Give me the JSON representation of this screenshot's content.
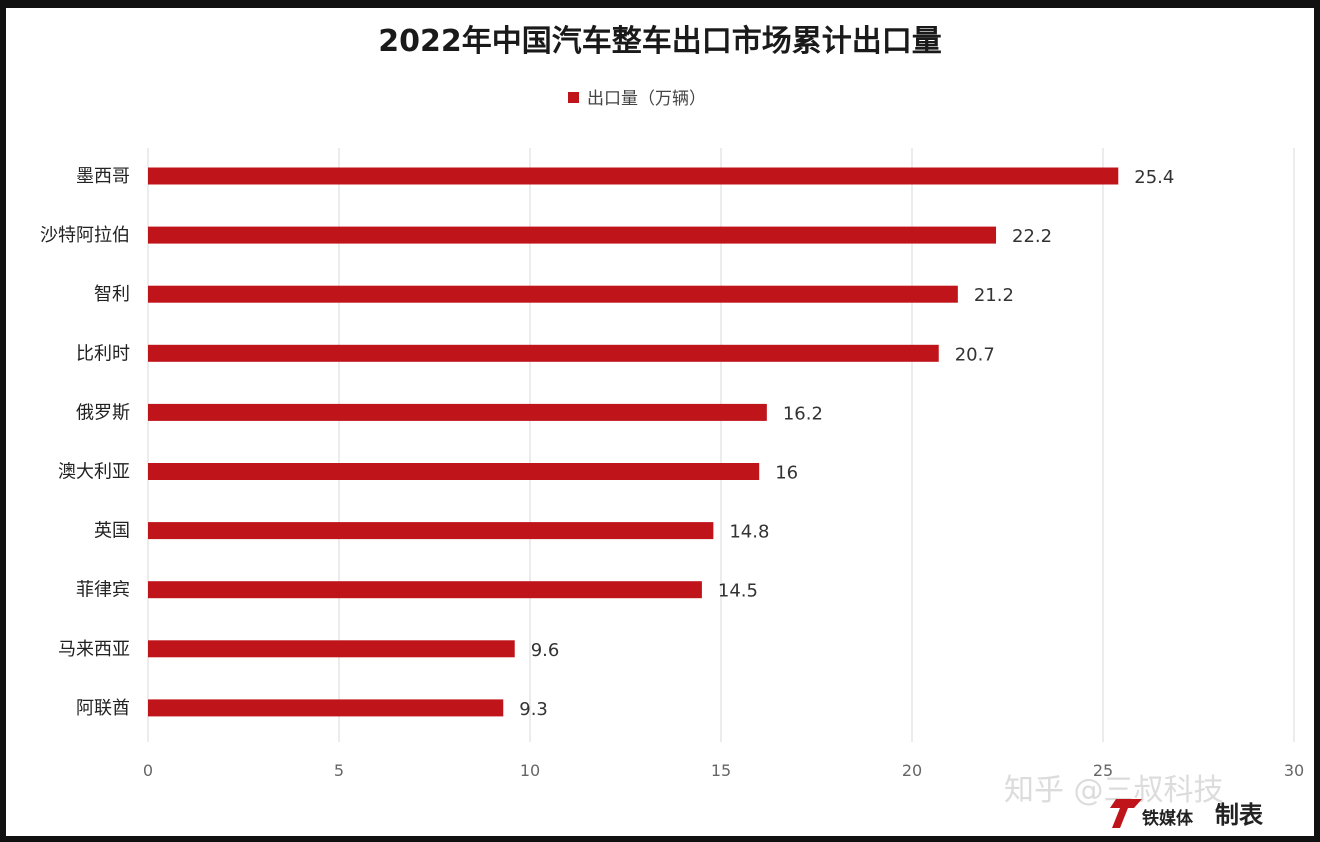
{
  "chart_data": {
    "type": "bar",
    "orientation": "horizontal",
    "title": "2022年中国汽车整车出口市场累计出口量",
    "legend": {
      "position": "top",
      "entries": [
        "出口量（万辆）"
      ]
    },
    "categories": [
      "墨西哥",
      "沙特阿拉伯",
      "智利",
      "比利时",
      "俄罗斯",
      "澳大利亚",
      "英国",
      "菲律宾",
      "马来西亚",
      "阿联酋"
    ],
    "series": [
      {
        "name": "出口量（万辆）",
        "values": [
          25.4,
          22.2,
          21.2,
          20.7,
          16.2,
          16,
          14.8,
          14.5,
          9.6,
          9.3
        ]
      }
    ],
    "value_labels": [
      "25.4",
      "22.2",
      "21.2",
      "20.7",
      "16.2",
      "16",
      "14.8",
      "14.5",
      "9.6",
      "9.3"
    ],
    "xlim": [
      0,
      30
    ],
    "xticks": [
      0,
      5,
      10,
      15,
      20,
      25,
      30
    ],
    "xtick_labels": [
      "0",
      "5",
      "10",
      "15",
      "20",
      "25",
      "30"
    ],
    "grid": true,
    "colors": {
      "bar": "#c0141b",
      "grid": "#d9d9d9"
    }
  },
  "overlay": {
    "watermark": "知乎 @三叔科技",
    "brand_logo_text": "铁媒体",
    "brand_suffix": "制表"
  }
}
